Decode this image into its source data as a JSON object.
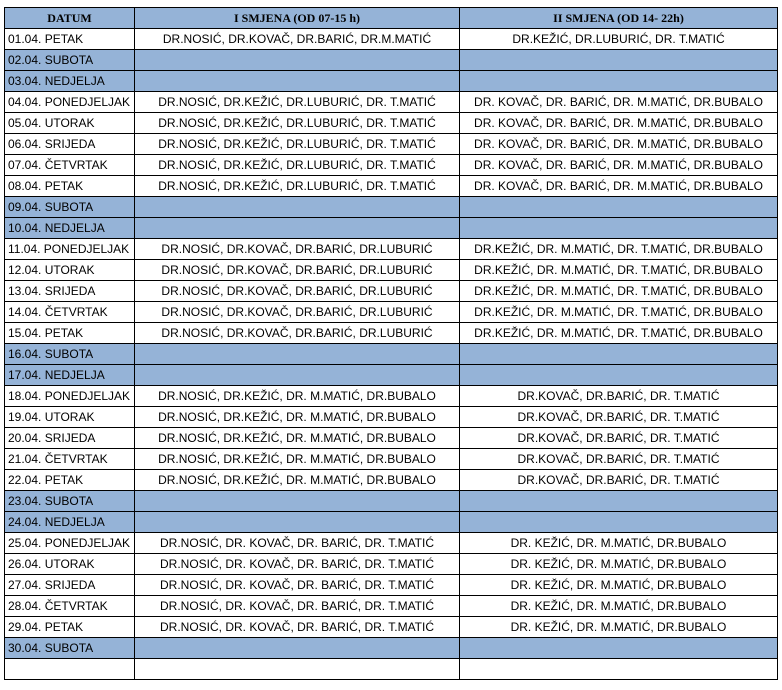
{
  "table": {
    "header": [
      "DATUM",
      "I SMJENA (OD 07-15 h)",
      "II SMJENA (OD 14- 22h)"
    ],
    "rows": [
      [
        "01.04. PETAK",
        "DR.NOSIĆ, DR.KOVAČ, DR.BARIĆ, DR.M.MATIĆ",
        "DR.KEŽIĆ, DR.LUBURIĆ, DR. T.MATIĆ"
      ],
      [
        "02.04. SUBOTA"
      ],
      [
        "03.04. NEDJELJA"
      ],
      [
        "04.04. PONEDJELJAK",
        "DR.NOSIĆ, DR.KEŽIĆ, DR.LUBURIĆ, DR. T.MATIĆ",
        "DR. KOVAČ, DR. BARIĆ, DR. M.MATIĆ, DR.BUBALO"
      ],
      [
        "05.04. UTORAK",
        "DR.NOSIĆ, DR.KEŽIĆ, DR.LUBURIĆ, DR. T.MATIĆ",
        "DR. KOVAČ, DR. BARIĆ, DR. M.MATIĆ, DR.BUBALO"
      ],
      [
        "06.04. SRIJEDA",
        "DR.NOSIĆ, DR.KEŽIĆ, DR.LUBURIĆ, DR. T.MATIĆ",
        "DR. KOVAČ, DR. BARIĆ, DR. M.MATIĆ, DR.BUBALO"
      ],
      [
        "07.04. ČETVRTAK",
        "DR.NOSIĆ, DR.KEŽIĆ, DR.LUBURIĆ, DR. T.MATIĆ",
        "DR. KOVAČ, DR. BARIĆ, DR. M.MATIĆ, DR.BUBALO"
      ],
      [
        "08.04. PETAK",
        "DR.NOSIĆ, DR.KEŽIĆ, DR.LUBURIĆ, DR. T.MATIĆ",
        "DR. KOVAČ, DR. BARIĆ, DR. M.MATIĆ, DR.BUBALO"
      ],
      [
        "09.04. SUBOTA"
      ],
      [
        "10.04. NEDJELJA"
      ],
      [
        "11.04. PONEDJELJAK",
        "DR.NOSIĆ, DR.KOVAČ, DR.BARIĆ, DR.LUBURIĆ",
        "DR.KEŽIĆ, DR. M.MATIĆ, DR. T.MATIĆ, DR.BUBALO"
      ],
      [
        "12.04. UTORAK",
        "DR.NOSIĆ, DR.KOVAČ, DR.BARIĆ, DR.LUBURIĆ",
        "DR.KEŽIĆ, DR. M.MATIĆ, DR. T.MATIĆ, DR.BUBALO"
      ],
      [
        "13.04. SRIJEDA",
        "DR.NOSIĆ, DR.KOVAČ, DR.BARIĆ, DR.LUBURIĆ",
        "DR.KEŽIĆ, DR. M.MATIĆ, DR. T.MATIĆ, DR.BUBALO"
      ],
      [
        "14.04. ČETVRTAK",
        "DR.NOSIĆ, DR.KOVAČ, DR.BARIĆ, DR.LUBURIĆ",
        "DR.KEŽIĆ, DR. M.MATIĆ, DR. T.MATIĆ, DR.BUBALO"
      ],
      [
        "15.04. PETAK",
        "DR.NOSIĆ, DR.KOVAČ, DR.BARIĆ, DR.LUBURIĆ",
        "DR.KEŽIĆ, DR. M.MATIĆ, DR. T.MATIĆ, DR.BUBALO"
      ],
      [
        "16.04. SUBOTA"
      ],
      [
        "17.04. NEDJELJA"
      ],
      [
        "18.04. PONEDJELJAK",
        "DR.NOSIĆ, DR.KEŽIĆ, DR. M.MATIĆ, DR.BUBALO",
        "DR.KOVAČ, DR.BARIĆ, DR. T.MATIĆ"
      ],
      [
        "19.04. UTORAK",
        "DR.NOSIĆ, DR.KEŽIĆ, DR. M.MATIĆ, DR.BUBALO",
        "DR.KOVAČ, DR.BARIĆ, DR. T.MATIĆ"
      ],
      [
        "20.04. SRIJEDA",
        "DR.NOSIĆ, DR.KEŽIĆ, DR. M.MATIĆ, DR.BUBALO",
        "DR.KOVAČ, DR.BARIĆ, DR. T.MATIĆ"
      ],
      [
        "21.04. ČETVRTAK",
        "DR.NOSIĆ, DR.KEŽIĆ, DR. M.MATIĆ, DR.BUBALO",
        "DR.KOVAČ, DR.BARIĆ, DR. T.MATIĆ"
      ],
      [
        "22.04. PETAK",
        "DR.NOSIĆ, DR.KEŽIĆ, DR. M.MATIĆ, DR.BUBALO",
        "DR.KOVAČ, DR.BARIĆ, DR. T.MATIĆ"
      ],
      [
        "23.04. SUBOTA"
      ],
      [
        "24.04. NEDJELJA"
      ],
      [
        "25.04. PONEDJELJAK",
        "DR.NOSIĆ, DR. KOVAČ, DR. BARIĆ, DR. T.MATIĆ",
        "DR. KEŽIĆ, DR. M.MATIĆ, DR.BUBALO"
      ],
      [
        "26.04. UTORAK",
        "DR.NOSIĆ, DR. KOVAČ, DR. BARIĆ, DR. T.MATIĆ",
        "DR. KEŽIĆ, DR. M.MATIĆ, DR.BUBALO"
      ],
      [
        "27.04. SRIJEDA",
        "DR.NOSIĆ, DR. KOVAČ, DR. BARIĆ, DR. T.MATIĆ",
        "DR. KEŽIĆ, DR. M.MATIĆ, DR.BUBALO"
      ],
      [
        "28.04. ČETVRTAK",
        "DR.NOSIĆ, DR. KOVAČ, DR. BARIĆ, DR. T.MATIĆ",
        "DR. KEŽIĆ, DR. M.MATIĆ, DR.BUBALO"
      ],
      [
        "29.04. PETAK",
        "DR.NOSIĆ, DR. KOVAČ, DR. BARIĆ, DR. T.MATIĆ",
        "DR. KEŽIĆ, DR. M.MATIĆ, DR.BUBALO"
      ],
      [
        "30.04. SUBOTA"
      ]
    ]
  }
}
